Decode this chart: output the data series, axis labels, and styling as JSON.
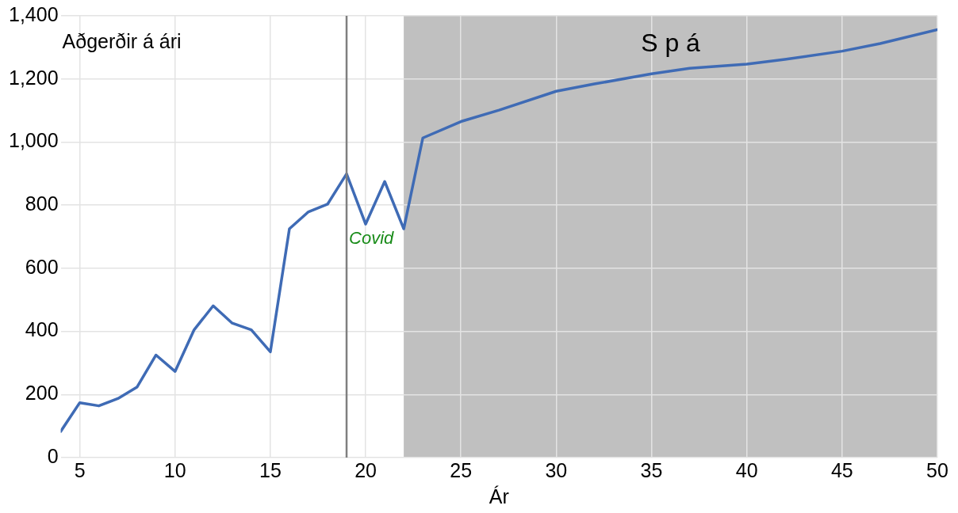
{
  "chart_data": {
    "type": "line",
    "title": "Aðgerðir á ári",
    "xlabel": "Ár",
    "x": [
      4,
      5,
      6,
      7,
      8,
      9,
      10,
      11,
      12,
      13,
      14,
      15,
      16,
      17,
      18,
      19,
      20,
      21,
      22,
      23,
      25,
      27,
      30,
      32,
      35,
      37,
      40,
      42,
      45,
      47,
      50
    ],
    "series": [
      {
        "color": "#3f6bb5",
        "values": [
          83,
          174,
          164,
          187,
          223,
          325,
          273,
          405,
          481,
          426,
          405,
          335,
          725,
          779,
          803,
          899,
          740,
          875,
          725,
          1013,
          1065,
          1101,
          1161,
          1184,
          1216,
          1234,
          1247,
          1262,
          1288,
          1312,
          1356
        ]
      }
    ],
    "xlim": [
      4,
      50
    ],
    "xticks": [
      5,
      10,
      15,
      20,
      25,
      30,
      35,
      40,
      45,
      50
    ],
    "ylim": [
      0,
      1400
    ],
    "yticks": [
      0,
      200,
      400,
      600,
      800,
      {
        "value": 1000,
        "label": "1,000"
      },
      {
        "value": 1200,
        "label": "1,200"
      },
      {
        "value": 1400,
        "label": "1,400"
      }
    ],
    "grid": true,
    "marker": "none",
    "line_style": "solid",
    "ref_lines": [
      {
        "axis": "x",
        "value": 19,
        "color": "#7f7f7f"
      }
    ],
    "bands": [
      {
        "axis": "x",
        "from": 22,
        "to": 50,
        "label": "S p á",
        "color": "#c0c0c0"
      }
    ],
    "annotations": [
      "Covid"
    ]
  }
}
